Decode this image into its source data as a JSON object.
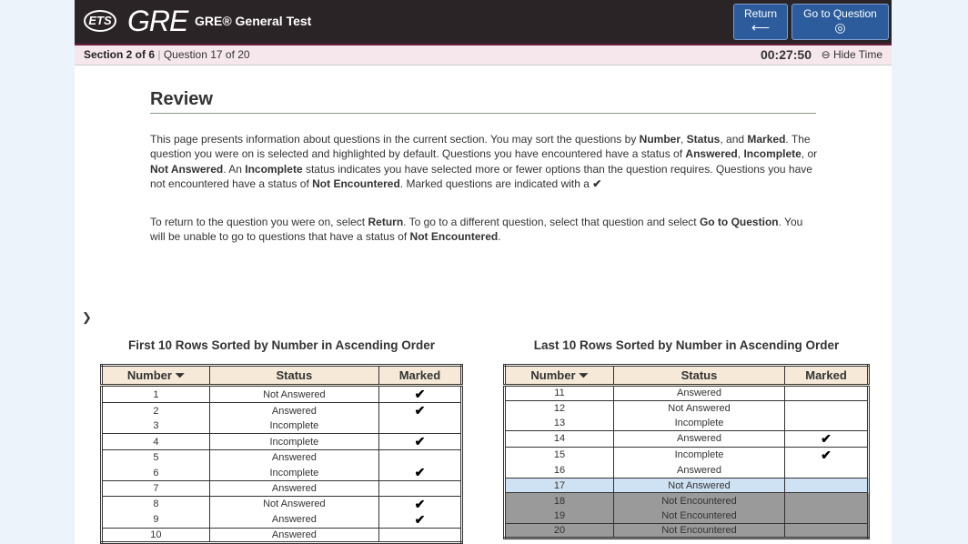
{
  "header": {
    "logo_ets": "ETS",
    "logo_gre": "GRE",
    "title": "GRE® General Test",
    "return_label": "Return",
    "return_icon": "arrow-left-icon",
    "goto_label": "Go to Question",
    "goto_icon": "target-icon"
  },
  "status_bar": {
    "section": "Section 2 of 6",
    "separator": "|",
    "question": "Question 17 of 20",
    "timer": "00:27:50",
    "hide_time": "Hide Time"
  },
  "review": {
    "title": "Review",
    "p1": [
      {
        "t": "This page presents information about questions in the current section. You may sort the questions by "
      },
      {
        "t": "Number",
        "b": true
      },
      {
        "t": ", "
      },
      {
        "t": "Status",
        "b": true
      },
      {
        "t": ", and "
      },
      {
        "t": "Marked",
        "b": true
      },
      {
        "t": ". The question you were on is selected and highlighted by default. Questions you have encountered have a status of "
      },
      {
        "t": "Answered",
        "b": true
      },
      {
        "t": ", "
      },
      {
        "t": "Incomplete",
        "b": true
      },
      {
        "t": ", or "
      },
      {
        "t": "Not Answered",
        "b": true
      },
      {
        "t": ". An "
      },
      {
        "t": "Incomplete",
        "b": true
      },
      {
        "t": " status indicates you have selected more or fewer options than the question requires. Questions you have not encountered have a status of "
      },
      {
        "t": "Not Encountered",
        "b": true
      },
      {
        "t": ". Marked questions are indicated with a "
      },
      {
        "t": "✔",
        "b": true
      }
    ],
    "p2": [
      {
        "t": "To return to the question you were on, select "
      },
      {
        "t": "Return",
        "b": true
      },
      {
        "t": ". To go to a different question, select that question and select "
      },
      {
        "t": "Go to Question",
        "b": true
      },
      {
        "t": ". You will be unable to go to questions that have a status of "
      },
      {
        "t": "Not Encountered",
        "b": true
      },
      {
        "t": "."
      }
    ]
  },
  "tables": [
    {
      "caption": "First 10 Rows Sorted by Number in Ascending Order",
      "headers": [
        "Number ⏷",
        "Status",
        "Marked"
      ],
      "rows": [
        [
          "1",
          "Not Answered",
          true
        ],
        [
          "2",
          "Answered",
          true
        ],
        [
          "3",
          "Incomplete",
          false
        ],
        [
          "4",
          "Incomplete",
          true
        ],
        [
          "5",
          "Answered",
          false
        ],
        [
          "6",
          "Incomplete",
          true
        ],
        [
          "7",
          "Answered",
          false
        ],
        [
          "8",
          "Not Answered",
          true
        ],
        [
          "9",
          "Answered",
          true
        ],
        [
          "10",
          "Answered",
          false
        ]
      ]
    },
    {
      "caption": "Last 10 Rows Sorted by Number in Ascending Order",
      "headers": [
        "Number ⏷",
        "Status",
        "Marked"
      ],
      "rows": [
        [
          "11",
          "Answered",
          false
        ],
        [
          "12",
          "Not Answered",
          false
        ],
        [
          "13",
          "Incomplete",
          false
        ],
        [
          "14",
          "Answered",
          true
        ],
        [
          "15",
          "Incomplete",
          true
        ],
        [
          "16",
          "Answered",
          false
        ],
        [
          "17",
          "Not Answered",
          false
        ],
        [
          "18",
          "Not Encountered",
          false
        ],
        [
          "19",
          "Not Encountered",
          false
        ],
        [
          "20",
          "Not Encountered",
          false
        ]
      ]
    }
  ],
  "current_question": "17",
  "check_glyph": "✔",
  "colors": {
    "header_bg": "#2b2427",
    "button_bg": "#2c5c9c",
    "selected_row": "#cfe2f3",
    "not_encountered_row": "#9a9a9a",
    "table_header": "#f6e9d8"
  }
}
